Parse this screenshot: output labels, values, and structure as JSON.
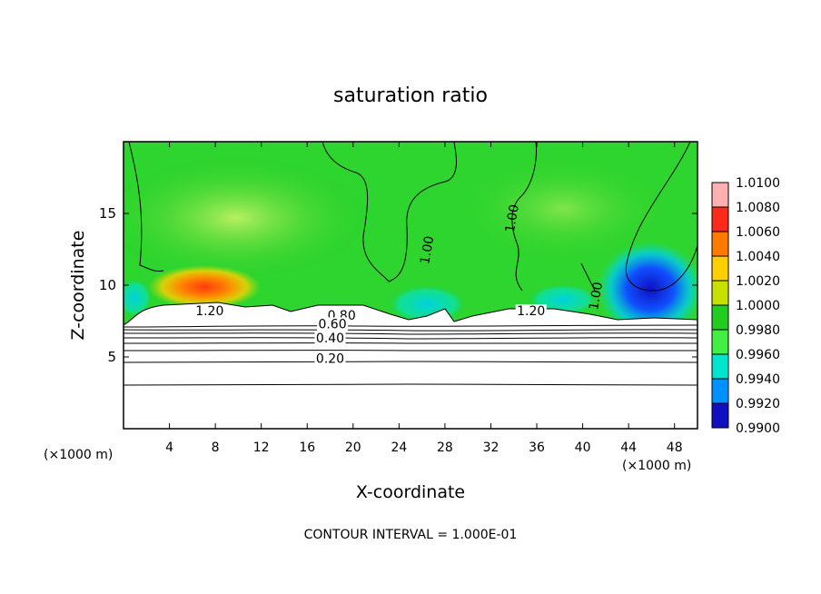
{
  "title": "saturation ratio",
  "footer": "CONTOUR INTERVAL = 1.000E-01",
  "chart_data": {
    "type": "heatmap",
    "title": "saturation ratio",
    "xlabel": "X-coordinate",
    "ylabel": "Z-coordinate",
    "x_unit_left": "(×1000 m)",
    "x_unit_right": "(×1000 m)",
    "xlim": [
      0,
      50
    ],
    "ylim": [
      0,
      20
    ],
    "x_ticks": [
      4,
      8,
      12,
      16,
      20,
      24,
      28,
      32,
      36,
      40,
      44,
      48
    ],
    "y_ticks": [
      5,
      10,
      15
    ],
    "colorbar": {
      "levels": [
        "1.0100",
        "1.0080",
        "1.0060",
        "1.0040",
        "1.0020",
        "1.0000",
        "0.9980",
        "0.9960",
        "0.9940",
        "0.9920",
        "0.9900"
      ],
      "colors": [
        "#ffb0b0",
        "#ff2a1a",
        "#ff7a00",
        "#ffd000",
        "#c8e000",
        "#22cc22",
        "#44ee44",
        "#00e6cc",
        "#0090ff",
        "#1010c0",
        "#6a0090"
      ]
    },
    "contour_labels": [
      {
        "text": "1.20",
        "x": 7.5,
        "y": 7.9
      },
      {
        "text": "1.20",
        "x": 35.5,
        "y": 7.9
      },
      {
        "text": "0.80",
        "x": 19.0,
        "y": 7.6
      },
      {
        "text": "0.60",
        "x": 18.2,
        "y": 7.0
      },
      {
        "text": "0.40",
        "x": 18.0,
        "y": 6.0
      },
      {
        "text": "0.20",
        "x": 18.0,
        "y": 4.6
      },
      {
        "text": "1.00",
        "x": 26.8,
        "y": 12.4
      },
      {
        "text": "1.00",
        "x": 34.2,
        "y": 14.6
      },
      {
        "text": "1.00",
        "x": 41.5,
        "y": 9.2
      }
    ],
    "contour_levels_lower": [
      0.2,
      0.4,
      0.6,
      0.8,
      1.0,
      1.2
    ],
    "contour_interval": 0.1,
    "grid": false
  }
}
